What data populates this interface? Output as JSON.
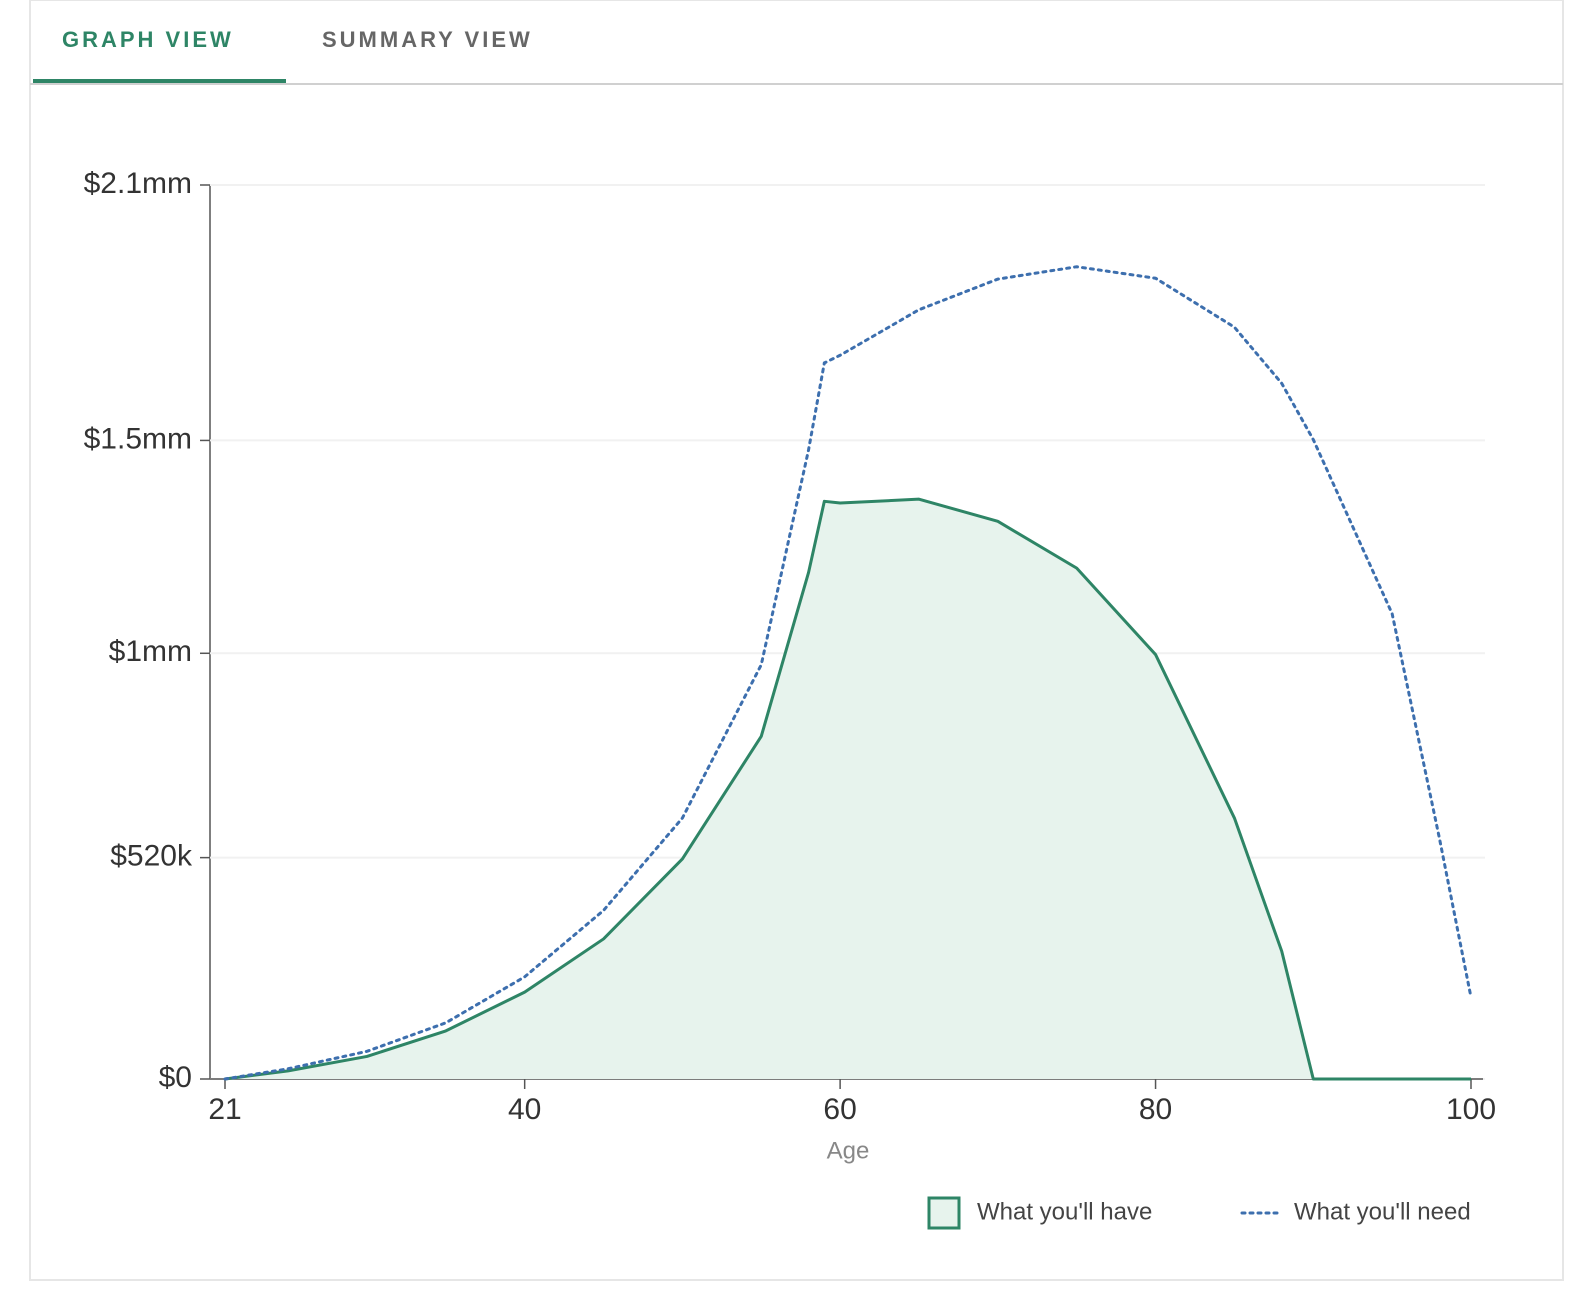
{
  "tabs": [
    "GRAPH VIEW",
    "SUMMARY VIEW"
  ],
  "chart_data": {
    "type": "line",
    "x_label": "Age",
    "x": [
      21,
      25,
      30,
      35,
      40,
      45,
      50,
      55,
      58,
      59,
      60,
      65,
      70,
      75,
      80,
      85,
      88,
      90,
      95,
      98,
      100
    ],
    "series": [
      {
        "name": "What you'll have",
        "color": "#2e8566",
        "fill": "#e7f3ed",
        "style": "area",
        "values": [
          0,
          19000,
          53000,
          113000,
          204000,
          329000,
          517000,
          805000,
          1190000,
          1357000,
          1353000,
          1362000,
          1310000,
          1200000,
          997000,
          613000,
          300000,
          0,
          0,
          0,
          0
        ]
      },
      {
        "name": "What you'll need",
        "color": "#3d6fae",
        "style": "dotted",
        "values": [
          0,
          24000,
          65000,
          132000,
          240000,
          396000,
          613000,
          973000,
          1478000,
          1682000,
          1700000,
          1807000,
          1879000,
          1908000,
          1881000,
          1766000,
          1634000,
          1502000,
          1093000,
          565000,
          192000
        ]
      }
    ],
    "xlim": [
      21,
      100
    ],
    "xticks": [
      21,
      40,
      60,
      80,
      100
    ],
    "ylim": [
      0,
      2100000
    ],
    "yticks": [
      {
        "value": 0,
        "label": "$0"
      },
      {
        "value": 520000,
        "label": "$520k"
      },
      {
        "value": 1000000,
        "label": "$1mm"
      },
      {
        "value": 1500000,
        "label": "$1.5mm"
      },
      {
        "value": 2100000,
        "label": "$2.1mm"
      }
    ],
    "grid": true
  }
}
